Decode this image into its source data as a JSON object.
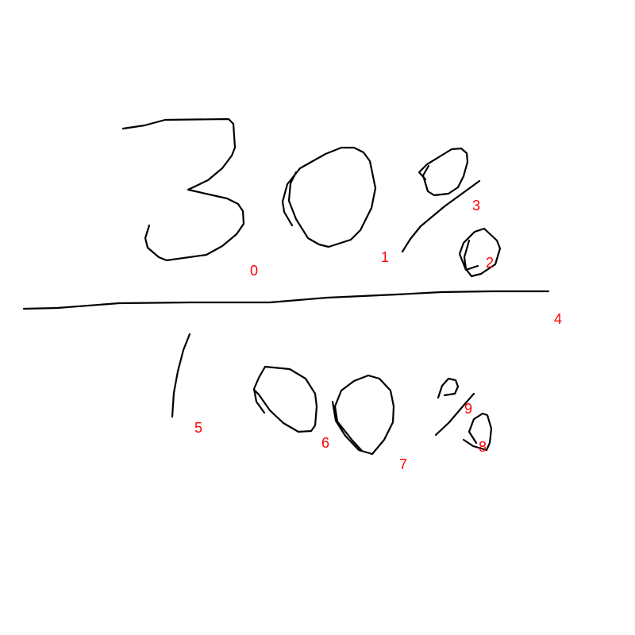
{
  "background_color": "#ffffff",
  "ink_color": "#000000",
  "label_color": "#ff0000",
  "strokes": [
    {
      "id": "stroke-0",
      "label": "0",
      "icon": "handwritten-digit-three-stroke"
    },
    {
      "id": "stroke-1",
      "label": "1",
      "icon": "handwritten-zero-stroke"
    },
    {
      "id": "stroke-2",
      "label": "2",
      "icon": "handwritten-percent-lower-circle-stroke"
    },
    {
      "id": "stroke-3",
      "label": "3",
      "icon": "handwritten-percent-upper-circle-stroke"
    },
    {
      "id": "stroke-4",
      "label": "4",
      "icon": "handwritten-fraction-bar-stroke"
    },
    {
      "id": "stroke-5",
      "label": "5",
      "icon": "handwritten-digit-one-stroke"
    },
    {
      "id": "stroke-6",
      "label": "6",
      "icon": "handwritten-zero-stroke"
    },
    {
      "id": "stroke-7",
      "label": "7",
      "icon": "handwritten-zero-stroke"
    },
    {
      "id": "stroke-8",
      "label": "8",
      "icon": "handwritten-percent-lower-circle-stroke"
    },
    {
      "id": "stroke-9",
      "label": "9",
      "icon": "handwritten-percent-slash-stroke"
    }
  ]
}
